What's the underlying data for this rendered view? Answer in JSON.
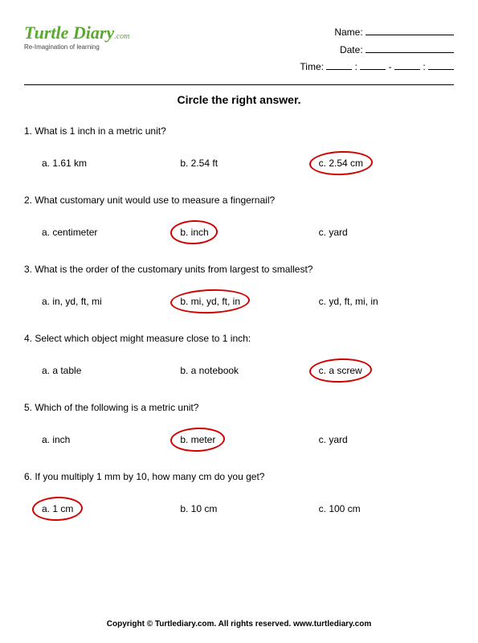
{
  "header": {
    "logo_text": "Turtle Diary",
    "logo_suffix": ".com",
    "tagline": "Re-Imagination of learning",
    "name_label": "Name:",
    "date_label": "Date:",
    "time_label": "Time:"
  },
  "instruction": "Circle the right answer.",
  "questions": [
    {
      "num": "1.",
      "text": "What is 1 inch in a metric unit?",
      "options": [
        "a. 1.61 km",
        "b. 2.54 ft",
        "c. 2.54 cm"
      ],
      "correct": 2
    },
    {
      "num": "2.",
      "text": "What customary unit would use to measure a fingernail?",
      "options": [
        "a. centimeter",
        "b. inch",
        "c. yard"
      ],
      "correct": 1
    },
    {
      "num": "3.",
      "text": "What is the order of the customary units from largest to smallest?",
      "options": [
        "a. in, yd, ft, mi",
        "b. mi, yd, ft, in",
        "c. yd, ft, mi, in"
      ],
      "correct": 1
    },
    {
      "num": "4.",
      "text": "Select which object might measure close to 1 inch:",
      "options": [
        "a. a table",
        "b. a notebook",
        "c. a screw"
      ],
      "correct": 2
    },
    {
      "num": "5.",
      "text": "Which of the following is a metric unit?",
      "options": [
        "a. inch",
        "b. meter",
        "c. yard"
      ],
      "correct": 1
    },
    {
      "num": "6.",
      "text": "If you multiply 1 mm by 10, how many cm do you get?",
      "options": [
        "a. 1 cm",
        "b. 10 cm",
        "c. 100 cm"
      ],
      "correct": 0
    }
  ],
  "footer": "Copyright © Turtlediary.com. All rights reserved. www.turtlediary.com",
  "style": {
    "circle_color": "#d30000",
    "logo_color": "#5aa82f",
    "text_color": "#000000",
    "background": "#ffffff"
  }
}
